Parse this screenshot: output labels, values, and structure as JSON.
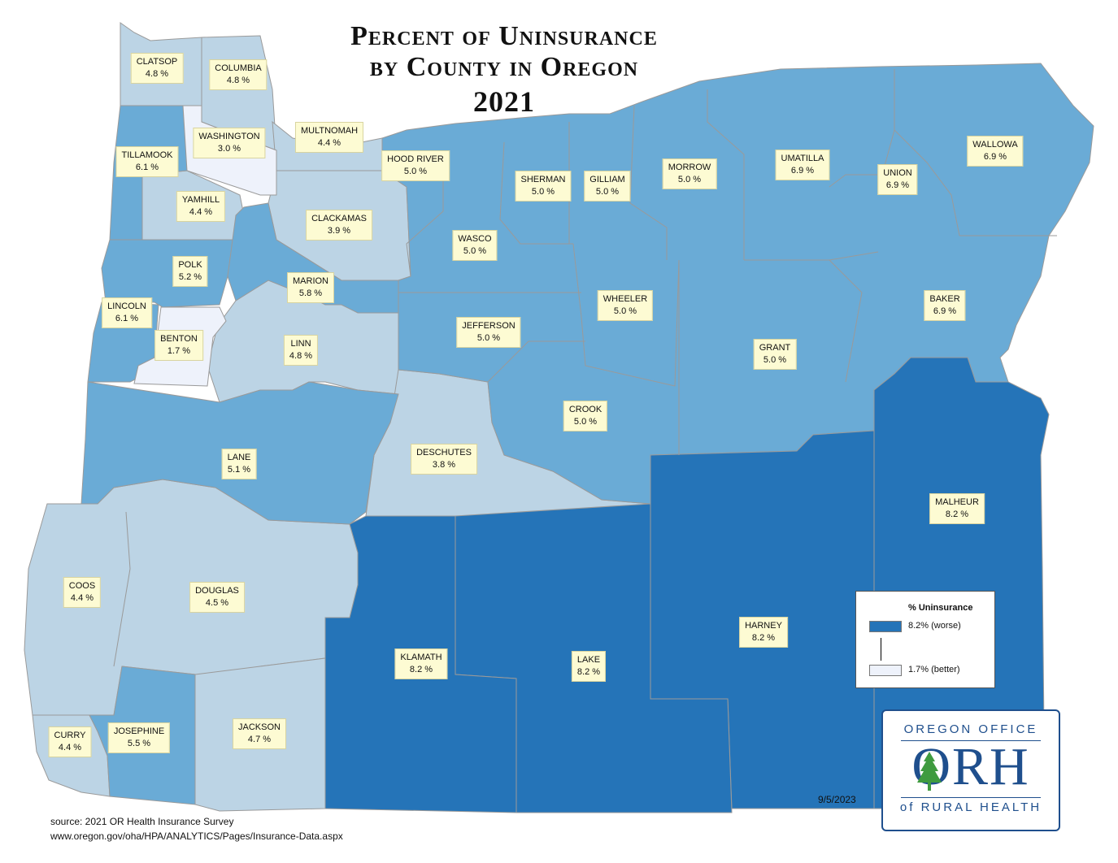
{
  "title": {
    "line1": "Percent of Uninsurance",
    "line2": "by County in Oregon",
    "line3": "2021"
  },
  "colors": {
    "high": "#2574b8",
    "mid": "#6aabd6",
    "low": "#bcd4e5",
    "lowest": "#eef2fb",
    "border": "#9a9a9a",
    "label_bg": "#fdfbd3"
  },
  "counties": [
    {
      "name": "CLATSOP",
      "value": "4.8 %"
    },
    {
      "name": "COLUMBIA",
      "value": "4.8 %"
    },
    {
      "name": "TILLAMOOK",
      "value": "6.1 %"
    },
    {
      "name": "WASHINGTON",
      "value": "3.0 %"
    },
    {
      "name": "MULTNOMAH",
      "value": "4.4 %"
    },
    {
      "name": "YAMHILL",
      "value": "4.4 %"
    },
    {
      "name": "CLACKAMAS",
      "value": "3.9 %"
    },
    {
      "name": "POLK",
      "value": "5.2 %"
    },
    {
      "name": "MARION",
      "value": "5.8 %"
    },
    {
      "name": "LINCOLN",
      "value": "6.1 %"
    },
    {
      "name": "BENTON",
      "value": "1.7 %"
    },
    {
      "name": "LINN",
      "value": "4.8 %"
    },
    {
      "name": "HOOD RIVER",
      "value": "5.0 %"
    },
    {
      "name": "SHERMAN",
      "value": "5.0 %"
    },
    {
      "name": "GILLIAM",
      "value": "5.0 %"
    },
    {
      "name": "MORROW",
      "value": "5.0 %"
    },
    {
      "name": "UMATILLA",
      "value": "6.9 %"
    },
    {
      "name": "UNION",
      "value": "6.9 %"
    },
    {
      "name": "WALLOWA",
      "value": "6.9 %"
    },
    {
      "name": "WASCO",
      "value": "5.0 %"
    },
    {
      "name": "WHEELER",
      "value": "5.0 %"
    },
    {
      "name": "JEFFERSON",
      "value": "5.0 %"
    },
    {
      "name": "BAKER",
      "value": "6.9 %"
    },
    {
      "name": "GRANT",
      "value": "5.0 %"
    },
    {
      "name": "CROOK",
      "value": "5.0 %"
    },
    {
      "name": "LANE",
      "value": "5.1 %"
    },
    {
      "name": "DESCHUTES",
      "value": "3.8 %"
    },
    {
      "name": "MALHEUR",
      "value": "8.2 %"
    },
    {
      "name": "COOS",
      "value": "4.4 %"
    },
    {
      "name": "DOUGLAS",
      "value": "4.5 %"
    },
    {
      "name": "HARNEY",
      "value": "8.2 %"
    },
    {
      "name": "KLAMATH",
      "value": "8.2 %"
    },
    {
      "name": "LAKE",
      "value": "8.2 %"
    },
    {
      "name": "CURRY",
      "value": "4.4 %"
    },
    {
      "name": "JOSEPHINE",
      "value": "5.5 %"
    },
    {
      "name": "JACKSON",
      "value": "4.7 %"
    }
  ],
  "legend": {
    "title": "% Uninsurance",
    "high_label": "8.2% (worse)",
    "low_label": "1.7% (better)"
  },
  "logo": {
    "top": "OREGON OFFICE",
    "mid": "ORH",
    "bottom": "of RURAL HEALTH"
  },
  "date": "9/5/2023",
  "source": {
    "line1": "source: 2021 OR Health Insurance Survey",
    "line2": "www.oregon.gov/oha/HPA/ANALYTICS/Pages/Insurance-Data.aspx"
  }
}
